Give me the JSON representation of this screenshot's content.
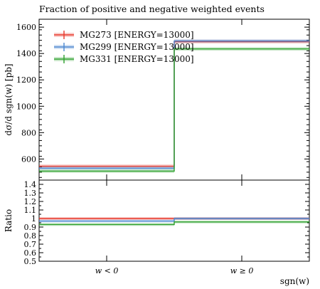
{
  "chart_data": [
    {
      "type": "line",
      "title": "Fraction of positive and negative weighted events",
      "ylabel": "dσ/d sgn(w) [pb]",
      "xlabel": "",
      "categories": [
        "w < 0",
        "w ≥ 0"
      ],
      "ylim": [
        440,
        1660
      ],
      "yticks": [
        600,
        800,
        1000,
        1200,
        1400,
        1600
      ],
      "legend_position": "top-left",
      "series": [
        {
          "name": "MG273 [ENERGY=13000]",
          "color": "#e8382b",
          "values": [
            545,
            1490
          ]
        },
        {
          "name": "MG299 [ENERGY=13000]",
          "color": "#4a86cf",
          "values": [
            530,
            1495
          ]
        },
        {
          "name": "MG331 [ENERGY=13000]",
          "color": "#2ca02c",
          "values": [
            508,
            1435
          ]
        }
      ]
    },
    {
      "type": "line",
      "title": "",
      "ylabel": "Ratio",
      "xlabel": "sgn(w)",
      "categories": [
        "w < 0",
        "w ≥ 0"
      ],
      "ylim": [
        0.5,
        1.45
      ],
      "yticks": [
        0.5,
        0.6,
        0.7,
        0.8,
        0.9,
        1,
        1.1,
        1.2,
        1.3,
        1.4
      ],
      "ytick_labels": [
        "0.5",
        "0.6",
        "0.7",
        "0.8",
        "0.9",
        "1",
        "1.1",
        "1.2",
        "1.3",
        "1.4"
      ],
      "series": [
        {
          "name": "MG273 [ENERGY=13000]",
          "color": "#e8382b",
          "values": [
            1.0,
            1.0
          ]
        },
        {
          "name": "MG299 [ENERGY=13000]",
          "color": "#4a86cf",
          "values": [
            0.97,
            1.0
          ]
        },
        {
          "name": "MG331 [ENERGY=13000]",
          "color": "#2ca02c",
          "values": [
            0.93,
            0.96
          ]
        }
      ]
    }
  ]
}
